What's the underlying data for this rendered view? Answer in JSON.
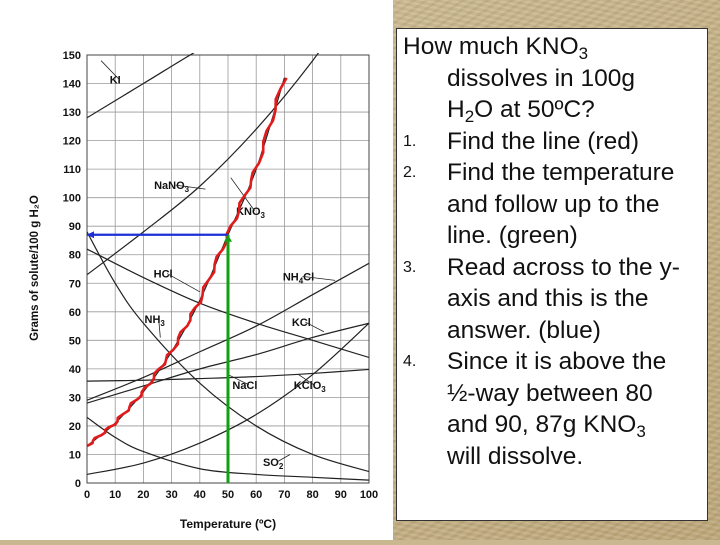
{
  "chart_data": {
    "type": "line",
    "xlabel": "Temperature (ºC)",
    "ylabel": "Grams of solute/100 g H₂O",
    "xlim": [
      0,
      100
    ],
    "ylim": [
      0,
      150
    ],
    "x_ticks": [
      "0",
      "10",
      "20",
      "30",
      "40",
      "50",
      "60",
      "70",
      "80",
      "90",
      "100"
    ],
    "y_ticks": [
      "0",
      "10",
      "20",
      "30",
      "40",
      "50",
      "60",
      "70",
      "80",
      "90",
      "100",
      "110",
      "120",
      "130",
      "140",
      "150"
    ],
    "grid": true,
    "series": [
      {
        "name": "KI",
        "x": [
          0,
          20,
          40,
          55
        ],
        "y": [
          128,
          140,
          152,
          160
        ]
      },
      {
        "name": "NaNO3",
        "x": [
          0,
          20,
          40,
          60,
          80,
          100
        ],
        "y": [
          73,
          88,
          104,
          124,
          148,
          176
        ]
      },
      {
        "name": "KNO3",
        "x": [
          0,
          10,
          20,
          30,
          40,
          50,
          60,
          70
        ],
        "y": [
          13,
          21,
          32,
          46,
          64,
          87,
          110,
          142
        ]
      },
      {
        "name": "HCl",
        "x": [
          0,
          20,
          40,
          60,
          80,
          100
        ],
        "y": [
          82,
          72,
          63,
          56,
          50,
          44
        ]
      },
      {
        "name": "NH4Cl",
        "x": [
          0,
          20,
          40,
          60,
          80,
          100
        ],
        "y": [
          29,
          37,
          46,
          55,
          66,
          77
        ]
      },
      {
        "name": "KCl",
        "x": [
          0,
          20,
          40,
          60,
          80,
          100
        ],
        "y": [
          28,
          34,
          40,
          45,
          51,
          56
        ]
      },
      {
        "name": "NH3",
        "x": [
          0,
          10,
          20,
          40,
          60,
          80,
          100
        ],
        "y": [
          88,
          70,
          56,
          35,
          20,
          10,
          4
        ]
      },
      {
        "name": "NaCl",
        "x": [
          0,
          20,
          40,
          60,
          80,
          100
        ],
        "y": [
          35.7,
          36,
          36.6,
          37.3,
          38.4,
          39.8
        ]
      },
      {
        "name": "KClO3",
        "x": [
          0,
          20,
          40,
          60,
          80,
          100
        ],
        "y": [
          3,
          7,
          14,
          24,
          38,
          56
        ]
      },
      {
        "name": "SO2",
        "x": [
          0,
          10,
          20,
          40,
          60,
          80,
          100
        ],
        "y": [
          23,
          16,
          11,
          5,
          3,
          2,
          1
        ]
      }
    ],
    "annotations": {
      "green_line": {
        "x": 50,
        "y_from": 0,
        "y_to": 87
      },
      "blue_line": {
        "y": 87,
        "x_from": 50,
        "x_to": 0
      }
    }
  },
  "question": {
    "line1_a": "How much KNO",
    "line1_sub": "3",
    "line2": "dissolves in 100g",
    "line3_a": "H",
    "line3_sub": "2",
    "line3_b": "O at 50ºC?",
    "steps": [
      {
        "num": "1.",
        "lines": [
          "Find the line (red)"
        ]
      },
      {
        "num": "2.",
        "lines": [
          "Find the temperature",
          "and follow up to the",
          "line.  (green)"
        ]
      },
      {
        "num": "3.",
        "lines": [
          "Read across to the y-",
          "axis and this is the",
          "answer. (blue)"
        ]
      },
      {
        "num": "4.",
        "lines": [
          "Since it is above the",
          "½-way between 80",
          "and 90, 87g KNO"
        ],
        "last_sub": "3",
        "tail": "will dissolve."
      }
    ]
  },
  "colors": {
    "red": "#e01b1b",
    "green": "#12a012",
    "blue": "#1c2fd6",
    "curve": "#222222"
  }
}
